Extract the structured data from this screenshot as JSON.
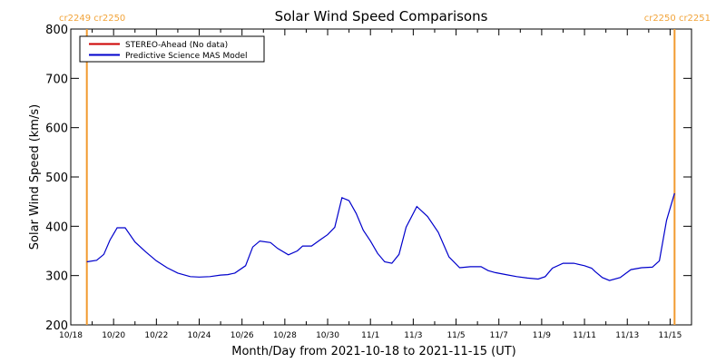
{
  "chart_data": {
    "type": "line",
    "title": "Solar Wind Speed Comparisons",
    "xlabel": "Month/Day from 2021-10-18 to 2021-11-15 (UT)",
    "ylabel": "Solar Wind Speed (km/s)",
    "ylim": [
      200,
      800
    ],
    "xlim": [
      "2021-10-18",
      "2021-11-16"
    ],
    "yticks": [
      200,
      300,
      400,
      500,
      600,
      700,
      800
    ],
    "xticks": [
      "2021-10-18",
      "2021-10-20",
      "2021-10-22",
      "2021-10-24",
      "2021-10-26",
      "2021-10-28",
      "2021-10-30",
      "2021-11-01",
      "2021-11-03",
      "2021-11-05",
      "2021-11-07",
      "2021-11-09",
      "2021-11-11",
      "2021-11-13",
      "2021-11-15"
    ],
    "xtick_labels": [
      "10/18",
      "10/20",
      "10/22",
      "10/24",
      "10/26",
      "10/28",
      "10/30",
      "11/1",
      "11/3",
      "11/5",
      "11/7",
      "11/9",
      "11/11",
      "11/13",
      "11/15"
    ],
    "legend_position": "top-left",
    "grid": false,
    "carrington_markers": [
      {
        "date": "2021-10-18 18:00",
        "label": "cr2249 cr2250",
        "side": "left"
      },
      {
        "date": "2021-11-15 05:00",
        "label": "cr2250 cr2251",
        "side": "right"
      }
    ],
    "series": [
      {
        "name": "STEREO-Ahead (No data)",
        "color": "#cc0000",
        "x": [],
        "y": []
      },
      {
        "name": "Predictive Science MAS Model",
        "color": "#0000cc",
        "x": [
          "2021-10-18 18:00",
          "2021-10-19 05:00",
          "2021-10-19 13:00",
          "2021-10-19 20:00",
          "2021-10-20 04:00",
          "2021-10-20 13:00",
          "2021-10-21 00:00",
          "2021-10-21 12:00",
          "2021-10-22 00:00",
          "2021-10-22 12:00",
          "2021-10-23 00:00",
          "2021-10-23 14:00",
          "2021-10-24 00:00",
          "2021-10-24 12:00",
          "2021-10-25 00:00",
          "2021-10-25 08:00",
          "2021-10-25 16:00",
          "2021-10-26 04:00",
          "2021-10-26 12:00",
          "2021-10-26 20:00",
          "2021-10-27 08:00",
          "2021-10-27 16:00",
          "2021-10-28 04:00",
          "2021-10-28 14:00",
          "2021-10-28 20:00",
          "2021-10-29 06:00",
          "2021-10-29 16:00",
          "2021-10-30 00:00",
          "2021-10-30 08:00",
          "2021-10-30 16:00",
          "2021-10-31 00:00",
          "2021-10-31 08:00",
          "2021-10-31 16:00",
          "2021-11-01 00:00",
          "2021-11-01 08:00",
          "2021-11-01 16:00",
          "2021-11-02 00:00",
          "2021-11-02 08:00",
          "2021-11-02 16:00",
          "2021-11-03 04:00",
          "2021-11-03 16:00",
          "2021-11-04 04:00",
          "2021-11-04 16:00",
          "2021-11-05 04:00",
          "2021-11-05 16:00",
          "2021-11-06 04:00",
          "2021-11-06 12:00",
          "2021-11-06 20:00",
          "2021-11-07 08:00",
          "2021-11-07 20:00",
          "2021-11-08 08:00",
          "2021-11-08 20:00",
          "2021-11-09 04:00",
          "2021-11-09 12:00",
          "2021-11-10 00:00",
          "2021-11-10 12:00",
          "2021-11-11 00:00",
          "2021-11-11 08:00",
          "2021-11-11 12:00",
          "2021-11-11 20:00",
          "2021-11-12 04:00",
          "2021-11-12 16:00",
          "2021-11-13 04:00",
          "2021-11-13 16:00",
          "2021-11-14 04:00",
          "2021-11-14 12:00",
          "2021-11-14 20:00",
          "2021-11-15 05:00"
        ],
        "y": [
          328,
          331,
          343,
          372,
          397,
          397,
          368,
          348,
          330,
          316,
          305,
          298,
          297,
          298,
          301,
          302,
          305,
          320,
          358,
          370,
          367,
          355,
          342,
          350,
          360,
          360,
          373,
          383,
          398,
          458,
          452,
          426,
          392,
          370,
          345,
          328,
          325,
          343,
          398,
          440,
          420,
          388,
          338,
          316,
          318,
          318,
          310,
          306,
          302,
          298,
          295,
          293,
          298,
          315,
          325,
          325,
          320,
          315,
          308,
          296,
          290,
          296,
          312,
          316,
          317,
          330,
          412,
          467
        ]
      }
    ]
  }
}
